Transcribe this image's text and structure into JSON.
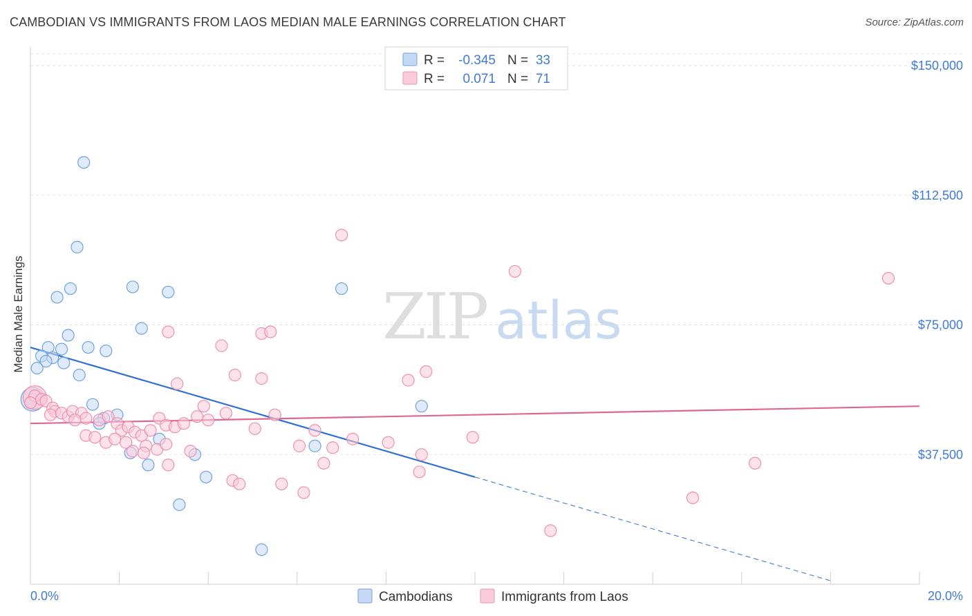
{
  "chart_data": {
    "type": "scatter",
    "title": "CAMBODIAN VS IMMIGRANTS FROM LAOS MEDIAN MALE EARNINGS CORRELATION CHART",
    "source": "Source: ZipAtlas.com",
    "ylabel": "Median Male Earnings",
    "xlim": [
      0,
      20
    ],
    "ylim": [
      0,
      155000
    ],
    "x_tick_labels": [
      "0.0%",
      "20.0%"
    ],
    "y_ticks": [
      {
        "value": 150000,
        "label": "$150,000"
      },
      {
        "value": 112500,
        "label": "$112,500"
      },
      {
        "value": 75000,
        "label": "$75,000"
      },
      {
        "value": 37500,
        "label": "$37,500"
      }
    ],
    "grid": true,
    "watermark": {
      "zip": "ZIP",
      "atlas": "atlas"
    },
    "legend_stats": [
      {
        "r_label": "R =",
        "r_value": "-0.345",
        "n_label": "N =",
        "n_value": "33",
        "color": "#6fa1e0",
        "fill": "#c5d9f5"
      },
      {
        "r_label": "R =",
        "r_value": "0.071",
        "n_label": "N =",
        "n_value": "71",
        "color": "#ee8fb0",
        "fill": "#f9ccdb"
      }
    ],
    "series": [
      {
        "name": "Cambodians",
        "color": "#6fa1e0",
        "fill": "#c5d9f5",
        "line_color": "#2f6fcf",
        "trend": {
          "x0": 0.0,
          "y0": 68500,
          "x1": 10.0,
          "y1": 31000,
          "dash_to_x": 18.0,
          "dash_to_y": 1000
        },
        "points": [
          [
            1.2,
            122000
          ],
          [
            1.05,
            97500
          ],
          [
            0.6,
            83000
          ],
          [
            0.9,
            85500
          ],
          [
            2.3,
            86000
          ],
          [
            3.1,
            84500
          ],
          [
            7.0,
            85500
          ],
          [
            2.5,
            74000
          ],
          [
            0.85,
            72000
          ],
          [
            0.4,
            68500
          ],
          [
            0.7,
            68000
          ],
          [
            1.3,
            68500
          ],
          [
            1.7,
            67500
          ],
          [
            0.25,
            66000
          ],
          [
            0.5,
            65500
          ],
          [
            0.35,
            64500
          ],
          [
            0.75,
            64000
          ],
          [
            0.15,
            62500
          ],
          [
            1.1,
            60500
          ],
          [
            0.05,
            53500
          ],
          [
            1.4,
            52000
          ],
          [
            1.95,
            49000
          ],
          [
            1.65,
            48000
          ],
          [
            1.55,
            46500
          ],
          [
            8.8,
            51500
          ],
          [
            2.9,
            42000
          ],
          [
            6.4,
            40000
          ],
          [
            2.25,
            38000
          ],
          [
            3.7,
            37500
          ],
          [
            2.65,
            34500
          ],
          [
            3.95,
            31000
          ],
          [
            3.35,
            23000
          ],
          [
            5.2,
            10000
          ]
        ],
        "big_point": [
          0.05,
          53500
        ]
      },
      {
        "name": "Immigrants from Laos",
        "color": "#ee8fb0",
        "fill": "#f9ccdb",
        "line_color": "#e0668f",
        "trend": {
          "x0": 0.0,
          "y0": 46500,
          "x1": 20.0,
          "y1": 51500
        },
        "points": [
          [
            7.0,
            101000
          ],
          [
            10.9,
            90500
          ],
          [
            19.3,
            88500
          ],
          [
            3.1,
            73000
          ],
          [
            5.2,
            72500
          ],
          [
            5.4,
            73000
          ],
          [
            4.3,
            69000
          ],
          [
            8.9,
            61500
          ],
          [
            4.6,
            60500
          ],
          [
            5.2,
            59500
          ],
          [
            8.5,
            59000
          ],
          [
            3.3,
            58000
          ],
          [
            0.1,
            54500
          ],
          [
            0.25,
            53500
          ],
          [
            0.35,
            53000
          ],
          [
            0.5,
            51000
          ],
          [
            0.55,
            50000
          ],
          [
            0.45,
            49000
          ],
          [
            0.7,
            49500
          ],
          [
            0.85,
            48500
          ],
          [
            0.95,
            50000
          ],
          [
            1.15,
            49500
          ],
          [
            1.25,
            48000
          ],
          [
            1.55,
            47500
          ],
          [
            1.75,
            48500
          ],
          [
            1.95,
            46500
          ],
          [
            2.05,
            44500
          ],
          [
            2.2,
            45500
          ],
          [
            2.35,
            44000
          ],
          [
            2.5,
            43000
          ],
          [
            2.7,
            44500
          ],
          [
            2.9,
            48000
          ],
          [
            3.05,
            46000
          ],
          [
            3.25,
            45500
          ],
          [
            3.45,
            46500
          ],
          [
            3.75,
            48500
          ],
          [
            4.0,
            47500
          ],
          [
            4.4,
            49500
          ],
          [
            3.9,
            51500
          ],
          [
            5.5,
            49000
          ],
          [
            1.25,
            43000
          ],
          [
            1.45,
            42500
          ],
          [
            1.7,
            41000
          ],
          [
            1.9,
            42000
          ],
          [
            2.15,
            41000
          ],
          [
            2.6,
            40000
          ],
          [
            2.85,
            39000
          ],
          [
            3.05,
            40500
          ],
          [
            3.6,
            38500
          ],
          [
            2.3,
            38500
          ],
          [
            2.55,
            38000
          ],
          [
            3.1,
            34500
          ],
          [
            4.55,
            30000
          ],
          [
            4.7,
            29000
          ],
          [
            5.65,
            29000
          ],
          [
            6.15,
            26500
          ],
          [
            6.05,
            40000
          ],
          [
            6.8,
            39500
          ],
          [
            6.6,
            35000
          ],
          [
            5.05,
            45000
          ],
          [
            6.4,
            44500
          ],
          [
            7.25,
            42000
          ],
          [
            8.05,
            41000
          ],
          [
            8.8,
            37500
          ],
          [
            8.75,
            32500
          ],
          [
            9.95,
            42500
          ],
          [
            11.7,
            15500
          ],
          [
            14.9,
            25000
          ],
          [
            16.3,
            35000
          ],
          [
            0.0,
            52500
          ],
          [
            1.0,
            47500
          ]
        ],
        "big_point": [
          0.1,
          54000
        ]
      }
    ]
  }
}
